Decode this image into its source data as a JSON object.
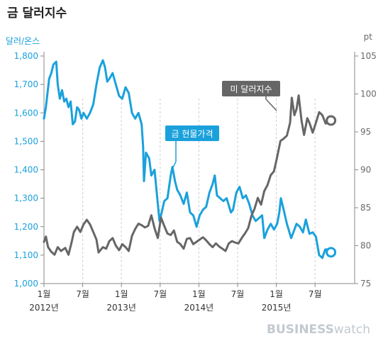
{
  "title": "금 달러지수",
  "brand": {
    "part1": "BUSINESS",
    "part2": "watch"
  },
  "colors": {
    "gold": "#1aa1dc",
    "dollar": "#666666",
    "axis_text": "#6a6a6a",
    "grid": "#cccccc"
  },
  "chart_data": {
    "type": "line",
    "left_axis": {
      "unit_label": "달러/온스",
      "range": [
        1000,
        1800
      ],
      "ticks": [
        "1,000",
        "1,100",
        "1,200",
        "1,300",
        "1,400",
        "1,500",
        "1,600",
        "1,700",
        "1,800"
      ]
    },
    "right_axis": {
      "unit_label": "pt",
      "range": [
        75,
        105
      ],
      "ticks": [
        "75",
        "80",
        "85",
        "90",
        "95",
        "100",
        "105"
      ]
    },
    "x_axis": {
      "start_month": "2012-01",
      "end_month": "2015-09",
      "ticks": [
        {
          "month": "2012-01",
          "label": "1월",
          "year": "2012년"
        },
        {
          "month": "2012-07",
          "label": "7월",
          "year": ""
        },
        {
          "month": "2013-01",
          "label": "1월",
          "year": "2013년"
        },
        {
          "month": "2013-07",
          "label": "7월",
          "year": ""
        },
        {
          "month": "2014-01",
          "label": "1월",
          "year": "2014년"
        },
        {
          "month": "2014-07",
          "label": "7월",
          "year": ""
        },
        {
          "month": "2015-01",
          "label": "1월",
          "year": "2015년"
        },
        {
          "month": "2015-07",
          "label": "7월",
          "year": ""
        }
      ]
    },
    "series": [
      {
        "name": "금 현물가격",
        "axis": "left",
        "points": [
          [
            "2012-01-01",
            1580
          ],
          [
            "2012-01-10",
            1620
          ],
          [
            "2012-01-25",
            1720
          ],
          [
            "2012-02-05",
            1740
          ],
          [
            "2012-02-15",
            1770
          ],
          [
            "2012-02-28",
            1780
          ],
          [
            "2012-03-05",
            1700
          ],
          [
            "2012-03-15",
            1650
          ],
          [
            "2012-03-25",
            1680
          ],
          [
            "2012-04-05",
            1640
          ],
          [
            "2012-04-15",
            1650
          ],
          [
            "2012-04-25",
            1620
          ],
          [
            "2012-05-05",
            1640
          ],
          [
            "2012-05-15",
            1560
          ],
          [
            "2012-05-25",
            1570
          ],
          [
            "2012-06-05",
            1620
          ],
          [
            "2012-06-15",
            1610
          ],
          [
            "2012-06-25",
            1580
          ],
          [
            "2012-07-05",
            1600
          ],
          [
            "2012-07-20",
            1580
          ],
          [
            "2012-08-05",
            1600
          ],
          [
            "2012-08-20",
            1630
          ],
          [
            "2012-09-05",
            1700
          ],
          [
            "2012-09-20",
            1760
          ],
          [
            "2012-10-05",
            1785
          ],
          [
            "2012-10-15",
            1760
          ],
          [
            "2012-10-25",
            1710
          ],
          [
            "2012-11-05",
            1720
          ],
          [
            "2012-11-20",
            1740
          ],
          [
            "2012-12-05",
            1700
          ],
          [
            "2012-12-20",
            1660
          ],
          [
            "2013-01-05",
            1650
          ],
          [
            "2013-01-20",
            1690
          ],
          [
            "2013-02-05",
            1670
          ],
          [
            "2013-02-20",
            1600
          ],
          [
            "2013-03-05",
            1580
          ],
          [
            "2013-03-20",
            1600
          ],
          [
            "2013-04-05",
            1560
          ],
          [
            "2013-04-12",
            1480
          ],
          [
            "2013-04-16",
            1360
          ],
          [
            "2013-04-25",
            1460
          ],
          [
            "2013-05-10",
            1440
          ],
          [
            "2013-05-20",
            1380
          ],
          [
            "2013-06-05",
            1400
          ],
          [
            "2013-06-20",
            1280
          ],
          [
            "2013-06-28",
            1220
          ],
          [
            "2013-07-05",
            1240
          ],
          [
            "2013-07-20",
            1290
          ],
          [
            "2013-08-05",
            1300
          ],
          [
            "2013-08-20",
            1380
          ],
          [
            "2013-08-28",
            1410
          ],
          [
            "2013-09-10",
            1360
          ],
          [
            "2013-09-20",
            1330
          ],
          [
            "2013-10-05",
            1310
          ],
          [
            "2013-10-20",
            1280
          ],
          [
            "2013-11-05",
            1320
          ],
          [
            "2013-11-20",
            1250
          ],
          [
            "2013-12-05",
            1240
          ],
          [
            "2013-12-20",
            1200
          ],
          [
            "2014-01-05",
            1240
          ],
          [
            "2014-01-20",
            1260
          ],
          [
            "2014-02-05",
            1270
          ],
          [
            "2014-02-20",
            1320
          ],
          [
            "2014-03-05",
            1350
          ],
          [
            "2014-03-15",
            1380
          ],
          [
            "2014-03-25",
            1310
          ],
          [
            "2014-04-10",
            1300
          ],
          [
            "2014-04-25",
            1290
          ],
          [
            "2014-05-10",
            1300
          ],
          [
            "2014-05-30",
            1250
          ],
          [
            "2014-06-10",
            1260
          ],
          [
            "2014-06-25",
            1320
          ],
          [
            "2014-07-10",
            1340
          ],
          [
            "2014-07-25",
            1300
          ],
          [
            "2014-08-10",
            1310
          ],
          [
            "2014-08-25",
            1280
          ],
          [
            "2014-09-10",
            1240
          ],
          [
            "2014-09-25",
            1220
          ],
          [
            "2014-10-10",
            1230
          ],
          [
            "2014-10-25",
            1240
          ],
          [
            "2014-11-05",
            1160
          ],
          [
            "2014-11-20",
            1190
          ],
          [
            "2014-12-05",
            1210
          ],
          [
            "2014-12-20",
            1190
          ],
          [
            "2015-01-05",
            1210
          ],
          [
            "2015-01-15",
            1250
          ],
          [
            "2015-01-22",
            1300
          ],
          [
            "2015-02-05",
            1260
          ],
          [
            "2015-02-20",
            1210
          ],
          [
            "2015-03-10",
            1160
          ],
          [
            "2015-03-20",
            1180
          ],
          [
            "2015-04-05",
            1210
          ],
          [
            "2015-04-20",
            1200
          ],
          [
            "2015-05-05",
            1180
          ],
          [
            "2015-05-18",
            1225
          ],
          [
            "2015-06-05",
            1175
          ],
          [
            "2015-06-20",
            1180
          ],
          [
            "2015-07-05",
            1165
          ],
          [
            "2015-07-20",
            1100
          ],
          [
            "2015-08-05",
            1090
          ],
          [
            "2015-08-18",
            1120
          ],
          [
            "2015-09-05",
            1120
          ],
          [
            "2015-09-15",
            1110
          ]
        ]
      },
      {
        "name": "미 달러지수",
        "axis": "right",
        "points": [
          [
            "2012-01-01",
            80.5
          ],
          [
            "2012-01-10",
            81.2
          ],
          [
            "2012-01-20",
            79.8
          ],
          [
            "2012-02-05",
            79.2
          ],
          [
            "2012-02-20",
            78.8
          ],
          [
            "2012-03-05",
            79.8
          ],
          [
            "2012-03-20",
            79.3
          ],
          [
            "2012-04-10",
            79.7
          ],
          [
            "2012-04-25",
            78.8
          ],
          [
            "2012-05-10",
            80.5
          ],
          [
            "2012-05-20",
            81.8
          ],
          [
            "2012-06-05",
            82.5
          ],
          [
            "2012-06-20",
            81.8
          ],
          [
            "2012-07-05",
            82.8
          ],
          [
            "2012-07-20",
            83.4
          ],
          [
            "2012-08-05",
            82.8
          ],
          [
            "2012-08-20",
            81.8
          ],
          [
            "2012-09-05",
            80.8
          ],
          [
            "2012-09-15",
            79.1
          ],
          [
            "2012-10-05",
            79.8
          ],
          [
            "2012-10-20",
            79.6
          ],
          [
            "2012-11-05",
            80.6
          ],
          [
            "2012-11-20",
            81.0
          ],
          [
            "2012-12-05",
            80.0
          ],
          [
            "2012-12-20",
            79.4
          ],
          [
            "2013-01-05",
            80.2
          ],
          [
            "2013-01-20",
            79.8
          ],
          [
            "2013-02-05",
            79.3
          ],
          [
            "2013-02-20",
            81.3
          ],
          [
            "2013-03-05",
            82.2
          ],
          [
            "2013-03-20",
            82.9
          ],
          [
            "2013-04-05",
            82.7
          ],
          [
            "2013-04-20",
            82.4
          ],
          [
            "2013-05-05",
            82.6
          ],
          [
            "2013-05-20",
            84.0
          ],
          [
            "2013-06-05",
            82.3
          ],
          [
            "2013-06-20",
            81.0
          ],
          [
            "2013-07-05",
            83.7
          ],
          [
            "2013-07-20",
            82.6
          ],
          [
            "2013-08-05",
            81.6
          ],
          [
            "2013-08-20",
            81.4
          ],
          [
            "2013-09-05",
            82.0
          ],
          [
            "2013-09-20",
            80.5
          ],
          [
            "2013-10-05",
            80.2
          ],
          [
            "2013-10-20",
            79.6
          ],
          [
            "2013-11-05",
            80.9
          ],
          [
            "2013-11-20",
            81.0
          ],
          [
            "2013-12-05",
            80.2
          ],
          [
            "2013-12-20",
            80.5
          ],
          [
            "2014-01-05",
            80.8
          ],
          [
            "2014-01-20",
            81.1
          ],
          [
            "2014-02-05",
            80.7
          ],
          [
            "2014-02-20",
            80.2
          ],
          [
            "2014-03-05",
            79.8
          ],
          [
            "2014-03-20",
            80.3
          ],
          [
            "2014-04-05",
            79.9
          ],
          [
            "2014-04-20",
            79.6
          ],
          [
            "2014-05-05",
            79.3
          ],
          [
            "2014-05-20",
            80.3
          ],
          [
            "2014-06-05",
            80.6
          ],
          [
            "2014-06-20",
            80.4
          ],
          [
            "2014-07-05",
            80.3
          ],
          [
            "2014-07-20",
            81.0
          ],
          [
            "2014-08-05",
            81.6
          ],
          [
            "2014-08-20",
            82.3
          ],
          [
            "2014-09-05",
            83.9
          ],
          [
            "2014-09-20",
            84.9
          ],
          [
            "2014-10-05",
            86.3
          ],
          [
            "2014-10-20",
            85.4
          ],
          [
            "2014-11-05",
            87.2
          ],
          [
            "2014-11-20",
            88.0
          ],
          [
            "2014-12-05",
            89.3
          ],
          [
            "2014-12-20",
            89.8
          ],
          [
            "2015-01-05",
            91.7
          ],
          [
            "2015-01-20",
            93.8
          ],
          [
            "2015-02-05",
            94.1
          ],
          [
            "2015-02-20",
            94.5
          ],
          [
            "2015-03-05",
            96.2
          ],
          [
            "2015-03-13",
            99.5
          ],
          [
            "2015-03-25",
            97.2
          ],
          [
            "2015-04-05",
            98.0
          ],
          [
            "2015-04-15",
            99.8
          ],
          [
            "2015-04-28",
            96.5
          ],
          [
            "2015-05-10",
            94.6
          ],
          [
            "2015-05-25",
            96.8
          ],
          [
            "2015-06-05",
            96.2
          ],
          [
            "2015-06-20",
            94.9
          ],
          [
            "2015-07-05",
            96.2
          ],
          [
            "2015-07-20",
            97.6
          ],
          [
            "2015-08-05",
            97.2
          ],
          [
            "2015-08-20",
            96.1
          ],
          [
            "2015-09-05",
            96.2
          ],
          [
            "2015-09-15",
            96.5
          ]
        ]
      }
    ],
    "annotations": [
      {
        "text": "금 현물가격",
        "series": "금 현물가격"
      },
      {
        "text": "미 달러지수",
        "series": "미 달러지수"
      }
    ],
    "grid": "vertical-dashed"
  }
}
